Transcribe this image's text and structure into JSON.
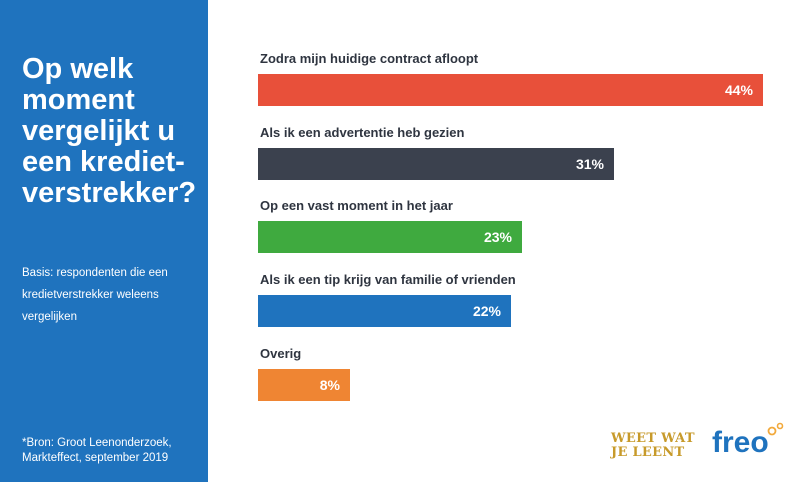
{
  "side_panel": {
    "title": "Op welk moment vergelijkt u een krediet-verstrekker?",
    "basis": "Basis: respondenten die een kredietverstrekker weleens vergelijken",
    "source_line1": "*Bron: Groot Leenonderzoek,",
    "source_line2": "Markteffect, september 2019"
  },
  "colors": {
    "panel": "#1f73be",
    "bar1": "#e8503a",
    "bar2": "#3b414e",
    "bar3": "#3faa3f",
    "bar4": "#1f73be",
    "bar5": "#ef8533"
  },
  "chart_data": {
    "type": "bar",
    "orientation": "horizontal",
    "title": "Op welk moment vergelijkt u een krediet-verstrekker?",
    "categories": [
      "Zodra mijn huidige contract afloopt",
      "Als ik een advertentie heb gezien",
      "Op een vast moment in het jaar",
      "Als ik een tip krijg van familie of vrienden",
      "Overig"
    ],
    "values": [
      44,
      31,
      23,
      22,
      8
    ],
    "value_labels": [
      "44%",
      "31%",
      "23%",
      "22%",
      "8%"
    ],
    "unit": "%",
    "xlim": [
      0,
      44
    ]
  },
  "logo": {
    "line1": "WEET WAT",
    "line2": "JE LEENT",
    "brand": "freo"
  }
}
